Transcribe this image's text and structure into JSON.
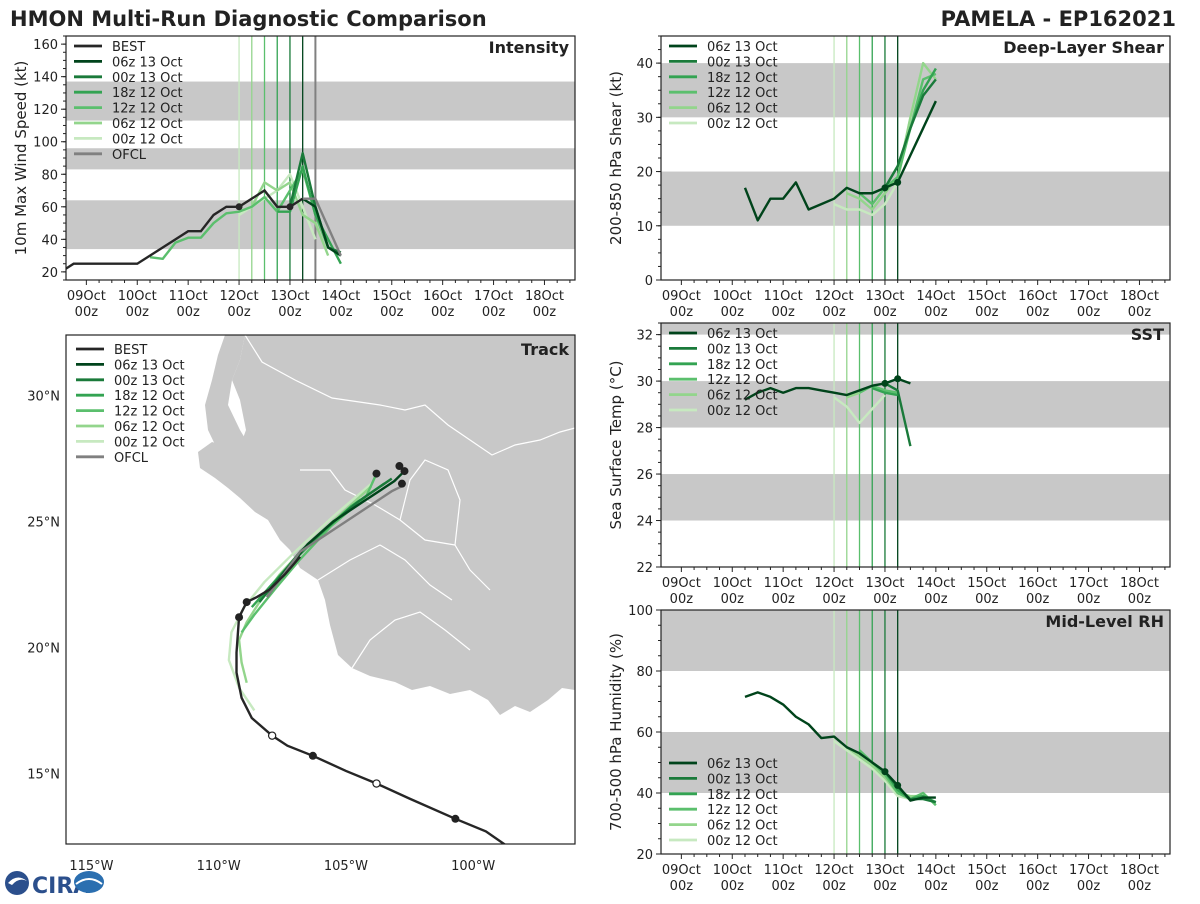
{
  "header": {
    "left_title": "HMON Multi-Run Diagnostic Comparison",
    "right_title": "PAMELA - EP162021"
  },
  "logo": {
    "text": "CIRA"
  },
  "colors": {
    "best": "#262626",
    "ofcl": "#808080",
    "shade": "#c8c8c8",
    "land": "#c8c8c8",
    "runs": [
      "#00441b",
      "#1a7a3a",
      "#33a352",
      "#5bbf6d",
      "#93d58c",
      "#c7e9c0"
    ]
  },
  "time_axis": {
    "ticks": [
      "09Oct",
      "10Oct",
      "11Oct",
      "12Oct",
      "13Oct",
      "14Oct",
      "15Oct",
      "16Oct",
      "17Oct",
      "18Oct"
    ],
    "tick_sub": "00z",
    "xlim": [
      8.6,
      18.6
    ],
    "init_lines": [
      12.0,
      12.25,
      12.5,
      12.75,
      13.0,
      13.25
    ]
  },
  "legend_runs": [
    "06z 13 Oct",
    "00z 13 Oct",
    "18z 12 Oct",
    "12z 12 Oct",
    "06z 12 Oct",
    "00z 12 Oct"
  ],
  "chart_data": [
    {
      "id": "intensity",
      "type": "line",
      "title": "Intensity",
      "ylabel": "10m Max Wind Speed (kt)",
      "ylim": [
        15,
        165
      ],
      "yticks": [
        20,
        40,
        60,
        80,
        100,
        120,
        140,
        160
      ],
      "shade_bands": [
        [
          34,
          64
        ],
        [
          83,
          96
        ],
        [
          113,
          137
        ]
      ],
      "legend": [
        "BEST",
        "06z 13 Oct",
        "00z 13 Oct",
        "18z 12 Oct",
        "12z 12 Oct",
        "06z 12 Oct",
        "00z 12 Oct",
        "OFCL"
      ],
      "ofcl_line": 13.5,
      "best": {
        "x": [
          8.5,
          8.75,
          9.0,
          9.25,
          9.5,
          9.75,
          10.0,
          10.25,
          10.5,
          10.75,
          11.0,
          11.25,
          11.5,
          11.75,
          12.0,
          12.25,
          12.5,
          12.75,
          13.0,
          13.25
        ],
        "y": [
          20,
          25,
          25,
          25,
          25,
          25,
          25,
          30,
          35,
          40,
          45,
          45,
          55,
          60,
          60,
          65,
          70,
          60,
          60,
          65
        ],
        "markers": [
          [
            12.0,
            60
          ],
          [
            13.0,
            60
          ]
        ]
      },
      "ofcl": {
        "x": [
          13.25,
          13.5,
          14.0
        ],
        "y": [
          65,
          65,
          30
        ]
      },
      "series": [
        {
          "name": "06z 13 Oct",
          "x": [
            13.25,
            13.5,
            13.75,
            14.0
          ],
          "y": [
            65,
            60,
            35,
            30
          ]
        },
        {
          "name": "00z 13 Oct",
          "x": [
            13.0,
            13.25,
            13.5,
            13.75,
            14.0
          ],
          "y": [
            60,
            93,
            60,
            35,
            32
          ]
        },
        {
          "name": "18z 12 Oct",
          "x": [
            12.75,
            13.0,
            13.25,
            13.5,
            13.75,
            14.0
          ],
          "y": [
            57,
            57,
            85,
            55,
            40,
            25
          ]
        },
        {
          "name": "12z 12 Oct",
          "x": [
            10.25,
            10.5,
            10.75,
            11.0,
            11.25,
            11.5,
            11.75,
            12.0,
            12.25,
            12.5,
            12.75,
            13.0,
            13.25,
            13.5,
            13.75
          ],
          "y": [
            29,
            28,
            38,
            41,
            41,
            50,
            56,
            57,
            60,
            66,
            57,
            70,
            83,
            55,
            35
          ]
        },
        {
          "name": "06z 12 Oct",
          "x": [
            12.25,
            12.5,
            12.75,
            13.0,
            13.25,
            13.5,
            13.75
          ],
          "y": [
            60,
            75,
            70,
            75,
            55,
            50,
            30
          ]
        },
        {
          "name": "00z 12 Oct",
          "x": [
            12.0,
            12.25,
            12.5,
            12.75,
            13.0,
            13.25,
            13.5
          ],
          "y": [
            55,
            60,
            65,
            70,
            80,
            60,
            40
          ]
        }
      ]
    },
    {
      "id": "shear",
      "type": "line",
      "title": "Deep-Layer Shear",
      "ylabel": "200-850 hPa Shear (kt)",
      "ylim": [
        0,
        45
      ],
      "yticks": [
        0,
        10,
        20,
        30,
        40
      ],
      "shade_bands": [
        [
          10,
          20
        ],
        [
          30,
          40
        ]
      ],
      "legend": [
        "06z 13 Oct",
        "00z 13 Oct",
        "18z 12 Oct",
        "12z 12 Oct",
        "06z 12 Oct",
        "00z 12 Oct"
      ],
      "series": [
        {
          "name": "06z 13 Oct",
          "x": [
            10.25,
            10.5,
            10.75,
            11.0,
            11.25,
            11.5,
            11.75,
            12.0,
            12.25,
            12.5,
            12.75,
            13.0,
            13.25,
            13.5,
            13.75,
            14.0
          ],
          "y": [
            17,
            11,
            15,
            15,
            18,
            13,
            14,
            15,
            17,
            16,
            16,
            17,
            18,
            23,
            28,
            33
          ],
          "markers": [
            [
              13.0,
              17
            ],
            [
              13.25,
              18
            ]
          ]
        },
        {
          "name": "00z 13 Oct",
          "x": [
            13.0,
            13.25,
            13.5,
            13.75,
            14.0
          ],
          "y": [
            17,
            21,
            28,
            34,
            37
          ]
        },
        {
          "name": "18z 12 Oct",
          "x": [
            12.75,
            13.0,
            13.25,
            13.5,
            13.75,
            14.0
          ],
          "y": [
            16,
            17,
            21,
            28,
            35,
            39
          ]
        },
        {
          "name": "12z 12 Oct",
          "x": [
            12.5,
            12.75,
            13.0,
            13.25,
            13.5,
            13.75,
            14.0
          ],
          "y": [
            16,
            14,
            17,
            19,
            28,
            37,
            38
          ]
        },
        {
          "name": "06z 12 Oct",
          "x": [
            12.25,
            12.5,
            12.75,
            13.0,
            13.25,
            13.5,
            13.75,
            14.0
          ],
          "y": [
            16,
            15,
            13,
            16,
            19,
            30,
            40,
            37
          ]
        },
        {
          "name": "00z 12 Oct",
          "x": [
            12.0,
            12.25,
            12.5,
            12.75,
            13.0,
            13.25,
            13.5,
            13.75
          ],
          "y": [
            14,
            13,
            13,
            12,
            14,
            18,
            30,
            40
          ]
        }
      ]
    },
    {
      "id": "sst",
      "type": "line",
      "title": "SST",
      "ylabel": "Sea Surface Temp (°C)",
      "ylim": [
        22,
        32.5
      ],
      "yticks": [
        22,
        24,
        26,
        28,
        30,
        32
      ],
      "shade_bands": [
        [
          24,
          26
        ],
        [
          28,
          30
        ],
        [
          32,
          33
        ]
      ],
      "legend": [
        "06z 13 Oct",
        "00z 13 Oct",
        "18z 12 Oct",
        "12z 12 Oct",
        "06z 12 Oct",
        "00z 12 Oct"
      ],
      "series": [
        {
          "name": "06z 13 Oct",
          "x": [
            10.25,
            10.5,
            10.75,
            11.0,
            11.25,
            11.5,
            11.75,
            12.0,
            12.25,
            12.5,
            12.75,
            13.0,
            13.25,
            13.5
          ],
          "y": [
            29.2,
            29.5,
            29.7,
            29.5,
            29.7,
            29.7,
            29.6,
            29.5,
            29.4,
            29.6,
            29.8,
            29.9,
            30.1,
            29.9
          ],
          "markers": [
            [
              13.0,
              29.9
            ],
            [
              13.25,
              30.1
            ]
          ]
        },
        {
          "name": "00z 13 Oct",
          "x": [
            13.0,
            13.25,
            13.5
          ],
          "y": [
            29.9,
            29.6,
            27.2
          ]
        },
        {
          "name": "18z 12 Oct",
          "x": [
            12.75,
            13.0,
            13.25
          ],
          "y": [
            29.7,
            29.5,
            29.4
          ]
        },
        {
          "name": "12z 12 Oct",
          "x": [
            12.5,
            12.75,
            13.0,
            13.25
          ],
          "y": [
            29.5,
            29.8,
            29.6,
            29.5
          ]
        },
        {
          "name": "06z 12 Oct",
          "x": [
            12.25,
            12.5,
            12.75,
            13.0
          ],
          "y": [
            29.3,
            29.5,
            29.8,
            29.6
          ]
        },
        {
          "name": "00z 12 Oct",
          "x": [
            12.0,
            12.25,
            12.5,
            12.75,
            13.0
          ],
          "y": [
            29.3,
            28.9,
            28.2,
            28.8,
            29.4
          ]
        }
      ]
    },
    {
      "id": "rh",
      "type": "line",
      "title": "Mid-Level RH",
      "ylabel": "700-500 hPa Humidity (%)",
      "ylim": [
        20,
        100
      ],
      "yticks": [
        20,
        40,
        60,
        80,
        100
      ],
      "shade_bands": [
        [
          40,
          60
        ],
        [
          80,
          100
        ]
      ],
      "legend": [
        "06z 13 Oct",
        "00z 13 Oct",
        "18z 12 Oct",
        "12z 12 Oct",
        "06z 12 Oct",
        "00z 12 Oct"
      ],
      "series": [
        {
          "name": "06z 13 Oct",
          "x": [
            10.25,
            10.5,
            10.75,
            11.0,
            11.25,
            11.5,
            11.75,
            12.0,
            12.25,
            12.5,
            12.75,
            13.0,
            13.25,
            13.5,
            13.75,
            14.0
          ],
          "y": [
            71.5,
            73,
            71.5,
            69,
            65,
            62.5,
            58,
            58.5,
            55,
            53,
            50,
            47,
            42.5,
            37.5,
            38.5,
            38.5
          ],
          "markers": [
            [
              13.0,
              47
            ],
            [
              13.25,
              42.5
            ]
          ]
        },
        {
          "name": "00z 13 Oct",
          "x": [
            13.0,
            13.25,
            13.5,
            13.75,
            14.0
          ],
          "y": [
            47,
            42,
            38,
            38,
            37
          ]
        },
        {
          "name": "18z 12 Oct",
          "x": [
            12.75,
            13.0,
            13.25,
            13.5,
            13.75,
            14.0
          ],
          "y": [
            50,
            47,
            41,
            38,
            39,
            37
          ]
        },
        {
          "name": "12z 12 Oct",
          "x": [
            12.5,
            12.75,
            13.0,
            13.25,
            13.5,
            13.75,
            14.0
          ],
          "y": [
            54,
            50,
            46,
            40,
            38,
            40,
            36
          ]
        },
        {
          "name": "06z 12 Oct",
          "x": [
            12.25,
            12.5,
            12.75,
            13.0,
            13.25,
            13.5,
            13.75
          ],
          "y": [
            55,
            52,
            49,
            45,
            40,
            39,
            39
          ]
        },
        {
          "name": "00z 12 Oct",
          "x": [
            12.0,
            12.25,
            12.5,
            12.75,
            13.0,
            13.25,
            13.5
          ],
          "y": [
            57,
            54,
            51,
            48,
            44,
            39,
            38
          ]
        }
      ]
    },
    {
      "id": "track",
      "type": "line",
      "title": "Track",
      "lon_range": [
        -116,
        -96
      ],
      "lat_range": [
        12.2,
        32.4
      ],
      "xticks": [
        -115,
        -110,
        -105,
        -100
      ],
      "xtick_labels": [
        "115°W",
        "110°W",
        "105°W",
        "100°W"
      ],
      "yticks": [
        15,
        20,
        25,
        30
      ],
      "ytick_labels": [
        "15°N",
        "20°N",
        "25°N",
        "30°N"
      ],
      "legend": [
        "BEST",
        "06z 13 Oct",
        "00z 13 Oct",
        "18z 12 Oct",
        "12z 12 Oct",
        "06z 12 Oct",
        "00z 12 Oct",
        "OFCL"
      ],
      "best": {
        "lon": [
          -98.5,
          -99.5,
          -100.7,
          -102.5,
          -103.8,
          -105.0,
          -106.3,
          -107.3,
          -107.9,
          -108.7,
          -109.1,
          -109.3,
          -109.3,
          -109.2,
          -108.9,
          -108.5,
          -108.0,
          -107.4,
          -106.8
        ],
        "lat": [
          12.0,
          12.7,
          13.2,
          14.0,
          14.6,
          15.1,
          15.7,
          16.1,
          16.5,
          17.2,
          18.0,
          19.0,
          19.8,
          21.2,
          21.8,
          22.0,
          22.3,
          22.9,
          23.6
        ],
        "filled": [
          [
            -100.7,
            13.2
          ],
          [
            -106.3,
            15.7
          ],
          [
            -109.2,
            21.2
          ],
          [
            -108.9,
            21.8
          ]
        ],
        "open": [
          [
            -103.8,
            14.6
          ],
          [
            -107.9,
            16.5
          ]
        ]
      },
      "ofcl": {
        "lon": [
          -108.1,
          -106.8,
          -105.0,
          -103.2,
          -102.8
        ],
        "lat": [
          22.0,
          23.8,
          25.0,
          26.2,
          26.4
        ],
        "markers": [
          [
            -102.8,
            26.5
          ]
        ]
      },
      "series": [
        {
          "name": "06z 13 Oct",
          "lon": [
            -108.1,
            -107.4,
            -106.5,
            -105.5,
            -104.3,
            -103.1,
            -102.7
          ],
          "lat": [
            22.0,
            23.0,
            24.1,
            25.0,
            25.8,
            26.6,
            27.0
          ],
          "markers": [
            [
              -102.7,
              27.0
            ],
            [
              -102.9,
              27.2
            ]
          ]
        },
        {
          "name": "00z 13 Oct",
          "lon": [
            -108.4,
            -107.6,
            -106.8,
            -105.7,
            -104.5,
            -103.2
          ],
          "lat": [
            21.8,
            22.8,
            23.8,
            24.8,
            25.8,
            26.7
          ]
        },
        {
          "name": "18z 12 Oct",
          "lon": [
            -108.7,
            -108.0,
            -107.1,
            -106.0,
            -104.8,
            -103.5
          ],
          "lat": [
            21.6,
            22.4,
            23.4,
            24.5,
            25.6,
            26.5
          ]
        },
        {
          "name": "12z 12 Oct",
          "lon": [
            -109.1,
            -108.6,
            -107.8,
            -106.8,
            -105.6,
            -104.2,
            -103.8
          ],
          "lat": [
            20.6,
            21.3,
            22.3,
            23.5,
            24.8,
            26.0,
            26.9
          ],
          "markers": [
            [
              -103.8,
              26.9
            ]
          ]
        },
        {
          "name": "06z 12 Oct",
          "lon": [
            -108.9,
            -109.1,
            -109.2,
            -108.9,
            -108.4,
            -107.6,
            -106.6,
            -105.3,
            -104.0
          ],
          "lat": [
            18.6,
            19.4,
            20.3,
            21.0,
            21.8,
            22.9,
            24.0,
            25.2,
            26.4
          ]
        },
        {
          "name": "00z 12 Oct",
          "lon": [
            -108.6,
            -109.2,
            -109.6,
            -109.5,
            -109.0,
            -108.2,
            -107.0,
            -105.5,
            -104.0
          ],
          "lat": [
            17.5,
            18.4,
            19.5,
            20.6,
            21.6,
            22.6,
            23.8,
            25.2,
            26.5
          ]
        }
      ]
    }
  ]
}
